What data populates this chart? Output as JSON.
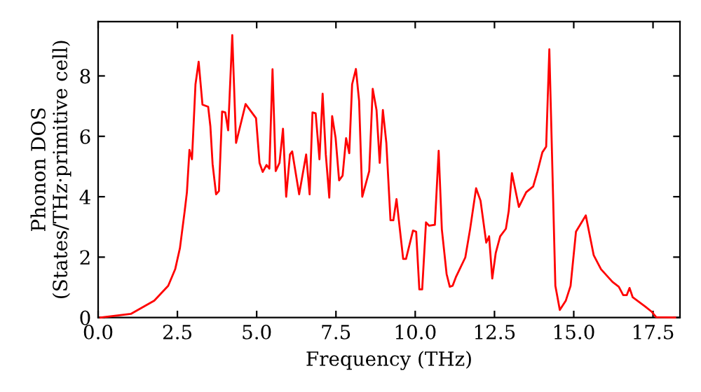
{
  "chart_data": {
    "type": "line",
    "xlabel": "Frequency (THz)",
    "ylabel": "Phonon DOS\n(States/THz·primitive cell)",
    "x": [
      0.07,
      1.03,
      1.77,
      2.21,
      2.43,
      2.58,
      2.73,
      2.8,
      2.88,
      2.96,
      3.07,
      3.17,
      3.29,
      3.47,
      3.54,
      3.61,
      3.72,
      3.81,
      3.91,
      4.01,
      4.1,
      4.23,
      4.35,
      4.65,
      4.98,
      5.09,
      5.19,
      5.31,
      5.4,
      5.5,
      5.6,
      5.72,
      5.83,
      5.93,
      6.05,
      6.12,
      6.34,
      6.56,
      6.67,
      6.76,
      6.86,
      6.98,
      7.08,
      7.18,
      7.29,
      7.38,
      7.49,
      7.6,
      7.71,
      7.82,
      7.92,
      8.01,
      8.13,
      8.23,
      8.33,
      8.55,
      8.66,
      8.78,
      8.88,
      8.98,
      9.09,
      9.22,
      9.31,
      9.41,
      9.62,
      9.71,
      9.93,
      10.03,
      10.13,
      10.22,
      10.34,
      10.44,
      10.62,
      10.74,
      10.84,
      10.99,
      11.09,
      11.18,
      11.28,
      11.58,
      11.73,
      11.92,
      12.06,
      12.24,
      12.33,
      12.43,
      12.54,
      12.68,
      12.86,
      12.95,
      13.05,
      13.27,
      13.5,
      13.72,
      13.86,
      14.01,
      14.13,
      14.23,
      14.42,
      14.56,
      14.75,
      14.9,
      15.07,
      15.38,
      15.63,
      15.86,
      16.22,
      16.42,
      16.56,
      16.67,
      16.76,
      16.86,
      17.26,
      17.45,
      17.6,
      18.2
    ],
    "series": [
      {
        "color": "#ff0000",
        "values": [
          0,
          0.12,
          0.56,
          1.05,
          1.6,
          2.3,
          3.53,
          4.15,
          5.55,
          5.24,
          7.72,
          8.47,
          7.05,
          6.98,
          6.33,
          5.08,
          4.08,
          4.19,
          6.82,
          6.79,
          6.2,
          9.35,
          5.78,
          7.07,
          6.6,
          5.12,
          4.82,
          5.05,
          4.93,
          8.22,
          4.85,
          5.12,
          6.25,
          4.0,
          5.4,
          5.5,
          4.08,
          5.4,
          4.08,
          6.79,
          6.76,
          5.24,
          7.41,
          5.4,
          3.97,
          6.67,
          5.94,
          4.54,
          4.7,
          5.94,
          5.44,
          7.72,
          8.23,
          7.18,
          4.0,
          4.85,
          7.57,
          6.87,
          5.12,
          6.87,
          5.78,
          3.22,
          3.22,
          3.92,
          1.94,
          1.94,
          2.88,
          2.84,
          0.93,
          0.93,
          3.15,
          3.04,
          3.07,
          5.52,
          2.92,
          1.44,
          1.02,
          1.05,
          1.33,
          1.99,
          2.92,
          4.28,
          3.87,
          2.48,
          2.69,
          1.29,
          2.14,
          2.69,
          2.94,
          3.53,
          4.78,
          3.66,
          4.15,
          4.34,
          4.85,
          5.47,
          5.66,
          8.88,
          1.05,
          0.25,
          0.56,
          1.05,
          2.84,
          3.38,
          2.06,
          1.6,
          1.18,
          1.02,
          0.74,
          0.74,
          0.98,
          0.67,
          0.36,
          0.2,
          0.01,
          0
        ]
      }
    ],
    "xlim": [
      0,
      18.35
    ],
    "ylim": [
      0,
      9.8
    ],
    "xticks": [
      {
        "value": 0,
        "label": "0.0"
      },
      {
        "value": 2.5,
        "label": "2.5"
      },
      {
        "value": 5,
        "label": "5.0"
      },
      {
        "value": 7.5,
        "label": "7.5"
      },
      {
        "value": 10,
        "label": "10.0"
      },
      {
        "value": 12.5,
        "label": "12.5"
      },
      {
        "value": 15,
        "label": "15.0"
      },
      {
        "value": 17.5,
        "label": "17.5"
      }
    ],
    "yticks": [
      0,
      2,
      4,
      6,
      8
    ],
    "grid": false,
    "marker": "none",
    "line_style": "solid"
  }
}
